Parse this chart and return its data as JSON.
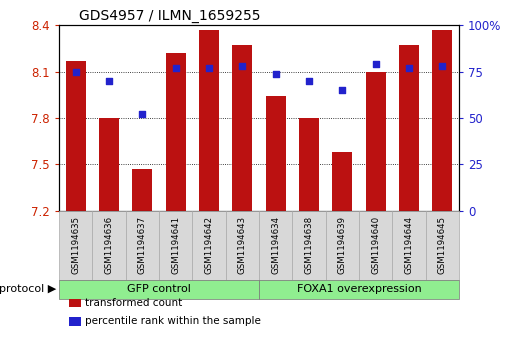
{
  "title": "GDS4957 / ILMN_1659255",
  "samples": [
    "GSM1194635",
    "GSM1194636",
    "GSM1194637",
    "GSM1194641",
    "GSM1194642",
    "GSM1194643",
    "GSM1194634",
    "GSM1194638",
    "GSM1194639",
    "GSM1194640",
    "GSM1194644",
    "GSM1194645"
  ],
  "transformed_count": [
    8.17,
    7.8,
    7.47,
    8.22,
    8.37,
    8.27,
    7.94,
    7.8,
    7.58,
    8.1,
    8.27,
    8.37
  ],
  "percentile_rank": [
    75,
    70,
    52,
    77,
    77,
    78,
    74,
    70,
    65,
    79,
    77,
    78
  ],
  "ylim_left": [
    7.2,
    8.4
  ],
  "ylim_right": [
    0,
    100
  ],
  "yticks_left": [
    7.2,
    7.5,
    7.8,
    8.1,
    8.4
  ],
  "yticks_right": [
    0,
    25,
    50,
    75,
    100
  ],
  "ytick_labels_right": [
    "0",
    "25",
    "50",
    "75",
    "100%"
  ],
  "grid_values": [
    7.5,
    7.8,
    8.1
  ],
  "groups": [
    {
      "label": "GFP control",
      "start": 0,
      "end": 6,
      "color": "#90EE90"
    },
    {
      "label": "FOXA1 overexpression",
      "start": 6,
      "end": 12,
      "color": "#90EE90"
    }
  ],
  "bar_color": "#BB1111",
  "dot_color": "#2222CC",
  "bar_width": 0.6,
  "tick_label_color_left": "#CC2200",
  "tick_label_color_right": "#2222CC",
  "legend_items": [
    {
      "label": "transformed count",
      "color": "#BB1111",
      "marker": "s"
    },
    {
      "label": "percentile rank within the sample",
      "color": "#2222CC",
      "marker": "s"
    }
  ],
  "protocol_label": "protocol",
  "sample_box_color": "#d8d8d8",
  "sample_box_edge": "#aaaaaa"
}
